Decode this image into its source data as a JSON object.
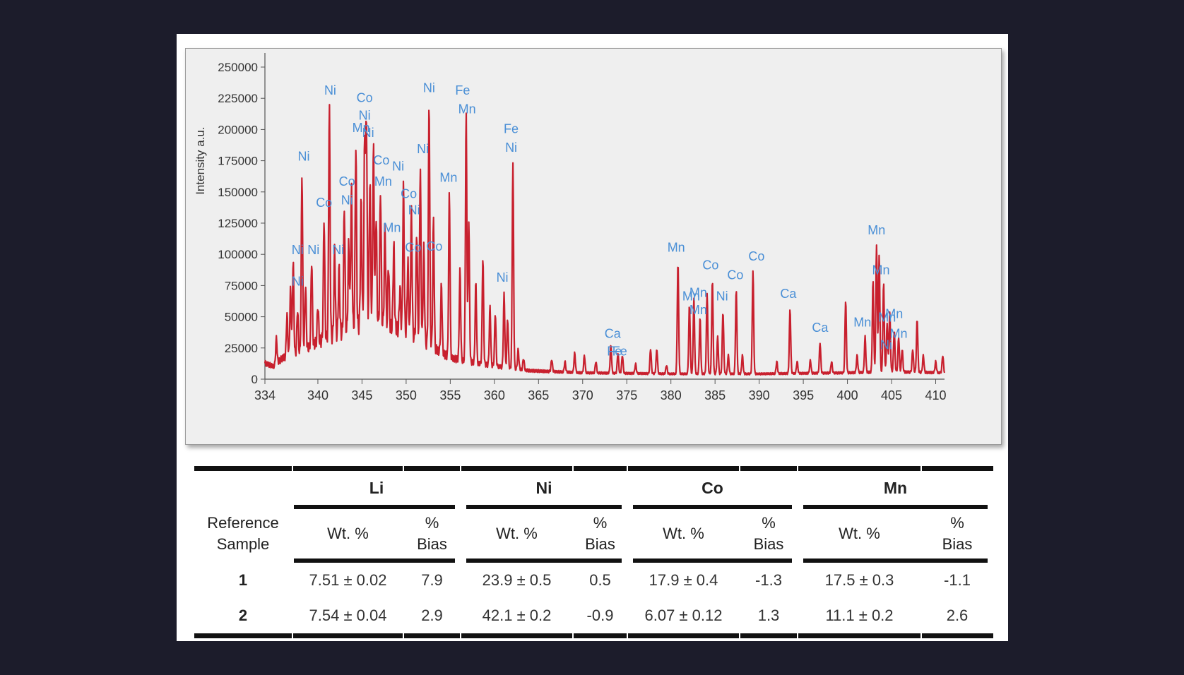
{
  "chart_data": {
    "type": "line",
    "title": "",
    "xlabel": "",
    "ylabel": "Intensity a.u.",
    "xlim": [
      334,
      411
    ],
    "ylim": [
      0,
      250000
    ],
    "x_ticks": [
      334,
      340,
      345,
      350,
      355,
      360,
      365,
      370,
      375,
      380,
      385,
      390,
      395,
      400,
      405,
      410
    ],
    "y_ticks": [
      0,
      25000,
      50000,
      75000,
      100000,
      125000,
      150000,
      175000,
      200000,
      225000,
      250000
    ],
    "y_tick_labels": [
      "0",
      "25000",
      "50000",
      "75000",
      "100000",
      "125000",
      "150000",
      "175000",
      "200000",
      "225000",
      "250000"
    ],
    "line_color": "#c8202e",
    "label_color": "#4a8fd6",
    "baseline": [
      [
        334,
        15000
      ],
      [
        335,
        12000
      ],
      [
        336,
        20000
      ],
      [
        338,
        25000
      ],
      [
        340,
        35000
      ],
      [
        343,
        45000
      ],
      [
        346,
        55000
      ],
      [
        350,
        45000
      ],
      [
        353,
        30000
      ],
      [
        355,
        20000
      ],
      [
        358,
        15000
      ],
      [
        362,
        10000
      ],
      [
        364,
        8000
      ],
      [
        370,
        6000
      ],
      [
        380,
        5000
      ],
      [
        390,
        5000
      ],
      [
        400,
        6000
      ],
      [
        405,
        7000
      ],
      [
        411,
        6000
      ]
    ],
    "peaks": [
      [
        335.3,
        35000
      ],
      [
        336.5,
        55000
      ],
      [
        336.9,
        75000
      ],
      [
        337.2,
        98000
      ],
      [
        337.7,
        60000
      ],
      [
        338.2,
        168000
      ],
      [
        338.6,
        80000
      ],
      [
        339.3,
        100000
      ],
      [
        340,
        65000
      ],
      [
        340.7,
        135000
      ],
      [
        341.3,
        225000
      ],
      [
        341.9,
        110000
      ],
      [
        342.4,
        95000
      ],
      [
        343,
        145000
      ],
      [
        343.5,
        115000
      ],
      [
        343.8,
        160000
      ],
      [
        344.3,
        195000
      ],
      [
        344.9,
        150000
      ],
      [
        345.3,
        200000
      ],
      [
        345.5,
        215000
      ],
      [
        345.9,
        170000
      ],
      [
        346.3,
        193000
      ],
      [
        346.6,
        140000
      ],
      [
        347.1,
        160000
      ],
      [
        347.6,
        130000
      ],
      [
        348,
        100000
      ],
      [
        348.6,
        115000
      ],
      [
        349.3,
        80000
      ],
      [
        349.7,
        160000
      ],
      [
        350.2,
        100000
      ],
      [
        350.6,
        140000
      ],
      [
        351.2,
        125000
      ],
      [
        351.6,
        175000
      ],
      [
        352,
        110000
      ],
      [
        352.6,
        227000
      ],
      [
        353.1,
        132000
      ],
      [
        354,
        80000
      ],
      [
        354.9,
        153000
      ],
      [
        356.1,
        90000
      ],
      [
        356.8,
        215000
      ],
      [
        357.1,
        130000
      ],
      [
        357.9,
        80000
      ],
      [
        358.7,
        100000
      ],
      [
        359.5,
        60000
      ],
      [
        360.1,
        55000
      ],
      [
        361.1,
        70000
      ],
      [
        361.5,
        50000
      ],
      [
        362.1,
        175000
      ],
      [
        362.7,
        25000
      ],
      [
        363.3,
        18000
      ],
      [
        366.5,
        17000
      ],
      [
        368,
        15000
      ],
      [
        369.1,
        22000
      ],
      [
        370.2,
        20000
      ],
      [
        371.5,
        15000
      ],
      [
        373.2,
        28000
      ],
      [
        374,
        22000
      ],
      [
        374.5,
        20000
      ],
      [
        376,
        13000
      ],
      [
        377.7,
        25000
      ],
      [
        378.4,
        25000
      ],
      [
        379.5,
        12000
      ],
      [
        380.8,
        94000
      ],
      [
        382.1,
        60000
      ],
      [
        382.6,
        65000
      ],
      [
        383.3,
        50000
      ],
      [
        384.1,
        70000
      ],
      [
        384.7,
        80000
      ],
      [
        385.3,
        35000
      ],
      [
        385.9,
        55000
      ],
      [
        386.5,
        20000
      ],
      [
        387.4,
        72000
      ],
      [
        388.1,
        20000
      ],
      [
        389.3,
        88000
      ],
      [
        392,
        15000
      ],
      [
        393.5,
        57000
      ],
      [
        394.3,
        15000
      ],
      [
        395.8,
        16000
      ],
      [
        396.9,
        30000
      ],
      [
        398.2,
        15000
      ],
      [
        399.8,
        64000
      ],
      [
        401.1,
        20000
      ],
      [
        402,
        35000
      ],
      [
        402.9,
        80000
      ],
      [
        403.3,
        109000
      ],
      [
        403.6,
        100000
      ],
      [
        404.1,
        78000
      ],
      [
        404.5,
        45000
      ],
      [
        404.8,
        55000
      ],
      [
        405.3,
        40000
      ],
      [
        405.8,
        35000
      ],
      [
        406.2,
        25000
      ],
      [
        407.4,
        25000
      ],
      [
        407.9,
        49000
      ],
      [
        408.6,
        20000
      ],
      [
        410,
        15000
      ],
      [
        410.8,
        20000
      ]
    ],
    "annotations": [
      {
        "text": "Ni",
        "x": 337.7,
        "y": 100000
      },
      {
        "text": "Ni",
        "x": 337.7,
        "y": 75000
      },
      {
        "text": "Ni",
        "x": 338.4,
        "y": 175000
      },
      {
        "text": "Ni",
        "x": 339.5,
        "y": 100000
      },
      {
        "text": "Co",
        "x": 340.7,
        "y": 138000
      },
      {
        "text": "Ni",
        "x": 341.4,
        "y": 228000
      },
      {
        "text": "Ni",
        "x": 342.3,
        "y": 100000
      },
      {
        "text": "Co",
        "x": 343.3,
        "y": 155000
      },
      {
        "text": "Ni",
        "x": 343.3,
        "y": 140000
      },
      {
        "text": "Mn",
        "x": 344.9,
        "y": 198000
      },
      {
        "text": "Co",
        "x": 345.3,
        "y": 222000
      },
      {
        "text": "Ni",
        "x": 345.3,
        "y": 208000
      },
      {
        "text": "Ni",
        "x": 345.7,
        "y": 194000
      },
      {
        "text": "Co",
        "x": 347.2,
        "y": 172000
      },
      {
        "text": "Mn",
        "x": 347.4,
        "y": 155000
      },
      {
        "text": "Ni",
        "x": 349.1,
        "y": 167000
      },
      {
        "text": "Mn",
        "x": 348.4,
        "y": 118000
      },
      {
        "text": "Co",
        "x": 350.3,
        "y": 145000
      },
      {
        "text": "Ni",
        "x": 350.9,
        "y": 132000
      },
      {
        "text": "Co",
        "x": 350.8,
        "y": 102000
      },
      {
        "text": "Co",
        "x": 353.2,
        "y": 103000
      },
      {
        "text": "Ni",
        "x": 351.9,
        "y": 181000
      },
      {
        "text": "Ni",
        "x": 352.6,
        "y": 230000
      },
      {
        "text": "Mn",
        "x": 354.8,
        "y": 158000
      },
      {
        "text": "Fe",
        "x": 356.4,
        "y": 228000
      },
      {
        "text": "Mn",
        "x": 356.9,
        "y": 213000
      },
      {
        "text": "Ni",
        "x": 360.9,
        "y": 78000
      },
      {
        "text": "Fe",
        "x": 361.9,
        "y": 197000
      },
      {
        "text": "Ni",
        "x": 361.9,
        "y": 182000
      },
      {
        "text": "Ca",
        "x": 373.4,
        "y": 33000
      },
      {
        "text": "Fe",
        "x": 373.6,
        "y": 19000
      },
      {
        "text": "Fe",
        "x": 374.2,
        "y": 19000
      },
      {
        "text": "Mn",
        "x": 380.6,
        "y": 102000
      },
      {
        "text": "Mn",
        "x": 382.3,
        "y": 63000
      },
      {
        "text": "Mn",
        "x": 383.1,
        "y": 66000
      },
      {
        "text": "Mn",
        "x": 383.1,
        "y": 52000
      },
      {
        "text": "Co",
        "x": 384.5,
        "y": 88000
      },
      {
        "text": "Ni",
        "x": 385.8,
        "y": 63000
      },
      {
        "text": "Co",
        "x": 387.3,
        "y": 80000
      },
      {
        "text": "Co",
        "x": 389.7,
        "y": 95000
      },
      {
        "text": "Ca",
        "x": 393.3,
        "y": 65000
      },
      {
        "text": "Ca",
        "x": 396.9,
        "y": 38000
      },
      {
        "text": "Mn",
        "x": 401.7,
        "y": 42000
      },
      {
        "text": "Mn",
        "x": 403.3,
        "y": 116000
      },
      {
        "text": "Mn",
        "x": 403.8,
        "y": 84000
      },
      {
        "text": "Mn",
        "x": 404.5,
        "y": 46000
      },
      {
        "text": "Mn",
        "x": 405.3,
        "y": 49000
      },
      {
        "text": "Mn",
        "x": 405.8,
        "y": 33000
      },
      {
        "text": "Ni",
        "x": 404.4,
        "y": 24000
      }
    ]
  },
  "table": {
    "elements": [
      "Li",
      "Ni",
      "Co",
      "Mn"
    ],
    "ref_header_line1": "Reference",
    "ref_header_line2": "Sample",
    "wt_label": "Wt. %",
    "bias_line1": "%",
    "bias_line2": "Bias",
    "rows": [
      {
        "sample": "1",
        "values": [
          "7.51 ± 0.02",
          "7.9",
          "23.9 ± 0.5",
          "0.5",
          "17.9 ± 0.4",
          "-1.3",
          "17.5 ± 0.3",
          "-1.1"
        ]
      },
      {
        "sample": "2",
        "values": [
          "7.54 ± 0.04",
          "2.9",
          "42.1 ± 0.2",
          "-0.9",
          "6.07 ± 0.12",
          "1.3",
          "11.1 ± 0.2",
          "2.6"
        ]
      }
    ]
  }
}
